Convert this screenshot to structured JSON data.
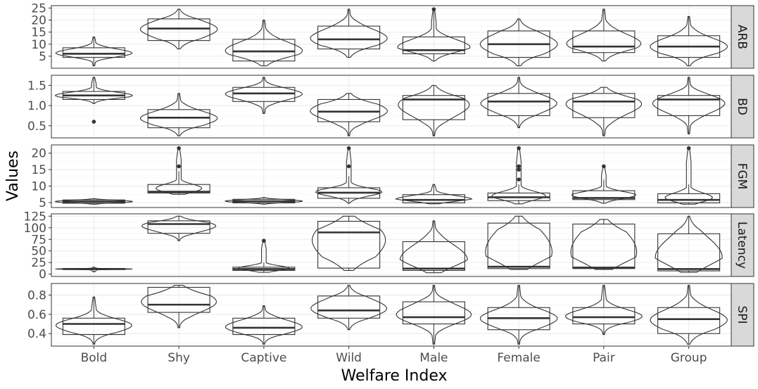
{
  "chart_data": {
    "type": "violin-box",
    "xlabel": "Welfare Index",
    "ylabel": "Values",
    "categories": [
      "Bold",
      "Shy",
      "Captive",
      "Wild",
      "Male",
      "Female",
      "Pair",
      "Group"
    ],
    "grid": true,
    "strip_position": "right",
    "panels": [
      {
        "name": "ARB",
        "ylim": [
          0,
          26
        ],
        "yticks": [
          5,
          10,
          15,
          20,
          25
        ],
        "groups": [
          {
            "min": 1,
            "q1": 4.5,
            "median": 6,
            "q3": 8.5,
            "max": 13,
            "outliers": []
          },
          {
            "min": 8,
            "q1": 11.5,
            "median": 16.5,
            "q3": 20.5,
            "max": 24.5,
            "outliers": []
          },
          {
            "min": 1,
            "q1": 3,
            "median": 7,
            "q3": 12,
            "max": 20,
            "outliers": []
          },
          {
            "min": 4.5,
            "q1": 8,
            "median": 12,
            "q3": 17.5,
            "max": 24.5,
            "outliers": []
          },
          {
            "min": 3,
            "q1": 6,
            "median": 7.5,
            "q3": 13,
            "max": 24.5,
            "outliers": [
              24.5
            ]
          },
          {
            "min": 1,
            "q1": 4.5,
            "median": 10,
            "q3": 15.5,
            "max": 20.5,
            "outliers": []
          },
          {
            "min": 3,
            "q1": 6.5,
            "median": 9,
            "q3": 15.5,
            "max": 24.5,
            "outliers": []
          },
          {
            "min": 1,
            "q1": 4.5,
            "median": 9,
            "q3": 13.5,
            "max": 21.5,
            "outliers": []
          }
        ]
      },
      {
        "name": "BD",
        "ylim": [
          0.2,
          1.75
        ],
        "yticks": [
          0.5,
          1.0,
          1.5
        ],
        "ytick_labels": [
          "0.5",
          "1.0",
          "1.5"
        ],
        "groups": [
          {
            "min": 1.05,
            "q1": 1.15,
            "median": 1.25,
            "q3": 1.35,
            "max": 1.7,
            "outliers": [
              0.6
            ]
          },
          {
            "min": 0.25,
            "q1": 0.45,
            "median": 0.7,
            "q3": 0.9,
            "max": 1.3,
            "outliers": []
          },
          {
            "min": 0.8,
            "q1": 1.1,
            "median": 1.3,
            "q3": 1.45,
            "max": 1.7,
            "outliers": []
          },
          {
            "min": 0.25,
            "q1": 0.6,
            "median": 0.85,
            "q3": 1.15,
            "max": 1.3,
            "outliers": []
          },
          {
            "min": 0.25,
            "q1": 0.65,
            "median": 1.15,
            "q3": 1.25,
            "max": 1.5,
            "outliers": []
          },
          {
            "min": 0.45,
            "q1": 0.75,
            "median": 1.1,
            "q3": 1.3,
            "max": 1.7,
            "outliers": []
          },
          {
            "min": 0.25,
            "q1": 0.7,
            "median": 1.1,
            "q3": 1.3,
            "max": 1.45,
            "outliers": []
          },
          {
            "min": 0.3,
            "q1": 0.75,
            "median": 1.15,
            "q3": 1.25,
            "max": 1.7,
            "outliers": []
          }
        ]
      },
      {
        "name": "FGM",
        "ylim": [
          3.5,
          22.5
        ],
        "yticks": [
          5,
          10,
          15,
          20
        ],
        "groups": [
          {
            "min": 4.5,
            "q1": 4.8,
            "median": 5.3,
            "q3": 5.8,
            "max": 6.2,
            "outliers": []
          },
          {
            "min": 7.5,
            "q1": 7.9,
            "median": 8.3,
            "q3": 10.5,
            "max": 14.5,
            "outliers": [
              16,
              21.5
            ]
          },
          {
            "min": 4.5,
            "q1": 4.9,
            "median": 5.4,
            "q3": 6,
            "max": 6.6,
            "outliers": []
          },
          {
            "min": 4.8,
            "q1": 6.3,
            "median": 8,
            "q3": 9.5,
            "max": 13,
            "outliers": [
              16,
              21.5
            ]
          },
          {
            "min": 4.6,
            "q1": 4.9,
            "median": 5.8,
            "q3": 7.4,
            "max": 10.5,
            "outliers": []
          },
          {
            "min": 4.6,
            "q1": 5.6,
            "median": 6.6,
            "q3": 7.9,
            "max": 10.5,
            "outliers": [
              12,
              15,
              16,
              21.5
            ]
          },
          {
            "min": 4.8,
            "q1": 5.9,
            "median": 6.4,
            "q3": 8.6,
            "max": 12,
            "outliers": [
              16
            ]
          },
          {
            "min": 4.5,
            "q1": 4.9,
            "median": 5.8,
            "q3": 7.7,
            "max": 10.5,
            "outliers": [
              21.5
            ]
          }
        ]
      },
      {
        "name": "Latency",
        "ylim": [
          -5,
          130
        ],
        "yticks": [
          0,
          25,
          50,
          75,
          100,
          125
        ],
        "groups": [
          {
            "min": 5,
            "q1": 10,
            "median": 11,
            "q3": 12,
            "max": 15,
            "outliers": []
          },
          {
            "min": 72,
            "q1": 88,
            "median": 108,
            "q3": 115,
            "max": 125,
            "outliers": []
          },
          {
            "min": 4,
            "q1": 8,
            "median": 11,
            "q3": 15,
            "max": 25,
            "outliers": [
              72
            ]
          },
          {
            "min": 8,
            "q1": 13,
            "median": 90,
            "q3": 114,
            "max": 125,
            "outliers": []
          },
          {
            "min": 3,
            "q1": 8,
            "median": 12,
            "q3": 70,
            "max": 115,
            "outliers": []
          },
          {
            "min": 10,
            "q1": 12,
            "median": 16,
            "q3": 110,
            "max": 125,
            "outliers": []
          },
          {
            "min": 10,
            "q1": 12,
            "median": 14,
            "q3": 108,
            "max": 118,
            "outliers": []
          },
          {
            "min": 4,
            "q1": 7,
            "median": 11,
            "q3": 87,
            "max": 125,
            "outliers": []
          }
        ]
      },
      {
        "name": "SPI",
        "ylim": [
          0.27,
          0.92
        ],
        "yticks": [
          0.4,
          0.6,
          0.8
        ],
        "ytick_labels": [
          "0.4",
          "0.6",
          "0.8"
        ],
        "groups": [
          {
            "min": 0.29,
            "q1": 0.39,
            "median": 0.5,
            "q3": 0.56,
            "max": 0.78,
            "outliers": []
          },
          {
            "min": 0.46,
            "q1": 0.62,
            "median": 0.7,
            "q3": 0.88,
            "max": 0.9,
            "outliers": []
          },
          {
            "min": 0.29,
            "q1": 0.39,
            "median": 0.46,
            "q3": 0.56,
            "max": 0.69,
            "outliers": []
          },
          {
            "min": 0.44,
            "q1": 0.56,
            "median": 0.64,
            "q3": 0.79,
            "max": 0.9,
            "outliers": []
          },
          {
            "min": 0.29,
            "q1": 0.5,
            "median": 0.57,
            "q3": 0.73,
            "max": 0.9,
            "outliers": []
          },
          {
            "min": 0.29,
            "q1": 0.44,
            "median": 0.56,
            "q3": 0.67,
            "max": 0.9,
            "outliers": []
          },
          {
            "min": 0.39,
            "q1": 0.5,
            "median": 0.57,
            "q3": 0.67,
            "max": 0.9,
            "outliers": []
          },
          {
            "min": 0.29,
            "q1": 0.4,
            "median": 0.55,
            "q3": 0.67,
            "max": 0.9,
            "outliers": []
          }
        ]
      }
    ]
  },
  "colors": {
    "panel_border": "#333333",
    "grid_major": "#ebebeb",
    "grid_minor": "#f5f5f5",
    "strip_bg": "#d9d9d9",
    "box_stroke": "#333333",
    "tick_text": "#4d4d4d"
  }
}
